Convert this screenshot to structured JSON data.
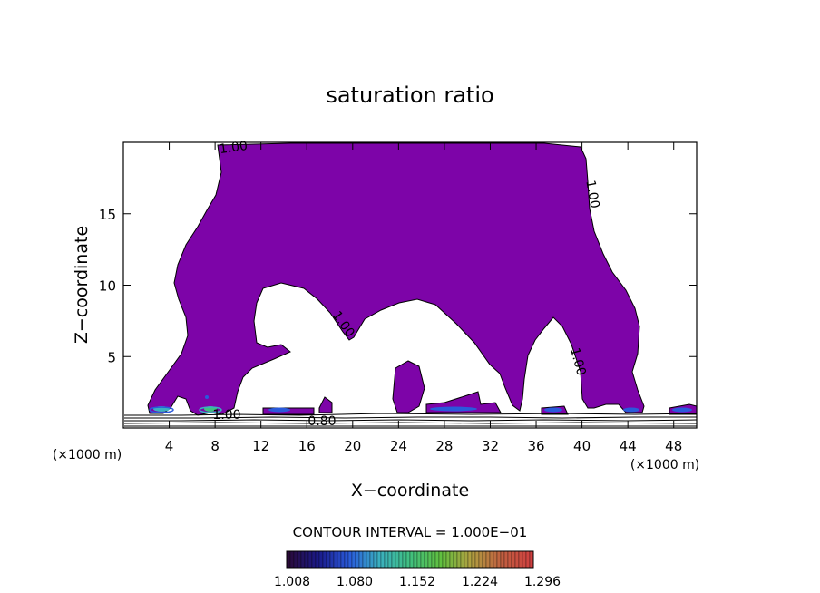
{
  "chart_data": {
    "type": "contour",
    "title": "saturation ratio",
    "xlabel": "X−coordinate",
    "ylabel": "Z−coordinate",
    "x_unit": "(×1000 m)",
    "xlim": [
      0,
      50
    ],
    "ylim": [
      0,
      20
    ],
    "x_ticks": [
      4,
      8,
      12,
      16,
      20,
      24,
      28,
      32,
      36,
      40,
      44,
      48
    ],
    "x_tick_labels": [
      "4",
      "8",
      "12",
      "16",
      "20",
      "24",
      "28",
      "32",
      "36",
      "40",
      "44",
      "48"
    ],
    "y_ticks": [
      5,
      10,
      15
    ],
    "y_tick_labels": [
      "5",
      "10",
      "15"
    ],
    "contour_labels": [
      "1.00",
      "1.00",
      "1.00",
      "1.00",
      "1.00",
      "0.80"
    ],
    "contour_interval_text": "CONTOUR INTERVAL = 1.000E−01",
    "colorbar": {
      "labels": [
        "1.008",
        "1.080",
        "1.152",
        "1.224",
        "1.296"
      ],
      "colors": [
        "#2a0a3a",
        "#1a1a8a",
        "#2a5adb",
        "#3ab0c0",
        "#40c080",
        "#60c040",
        "#b0a040",
        "#c06040",
        "#d04040"
      ]
    },
    "fill_color": "#7d04a8",
    "grid": false
  }
}
